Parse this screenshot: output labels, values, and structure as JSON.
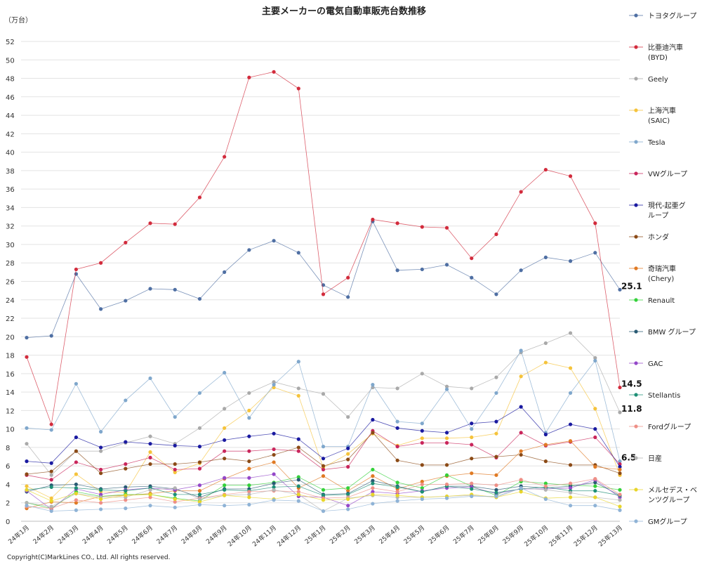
{
  "chart_data": {
    "type": "line",
    "title": "主要メーカーの電気自動車販売台数推移",
    "unit_label": "（万台）",
    "ylim": [
      0,
      52
    ],
    "yticks": [
      0,
      2,
      4,
      6,
      8,
      10,
      12,
      14,
      16,
      18,
      20,
      22,
      24,
      26,
      28,
      30,
      32,
      34,
      36,
      38,
      40,
      42,
      44,
      46,
      48,
      50,
      52
    ],
    "grid": true,
    "legend_position": "right",
    "categories": [
      "24年1月",
      "24年2月",
      "24年3月",
      "24年4月",
      "24年5月",
      "24年6月",
      "24年7月",
      "24年8月",
      "24年9月",
      "24年10月",
      "24年11月",
      "24年12月",
      "25年1月",
      "25年2月",
      "25年3月",
      "25年4月",
      "25年5月",
      "25年6月",
      "25年7月",
      "25年8月",
      "25年9月",
      "25年10月",
      "25年11月",
      "25年12月",
      "25年13月"
    ],
    "series": [
      {
        "name": "トヨタグループ",
        "color": "#4f6fa3",
        "values": [
          19.9,
          20.1,
          26.8,
          23.0,
          23.9,
          25.2,
          25.1,
          24.1,
          27.0,
          29.4,
          30.4,
          29.1,
          25.6,
          24.3,
          32.5,
          27.2,
          27.3,
          27.8,
          26.4,
          24.6,
          27.2,
          28.6,
          28.2,
          29.1,
          25.1
        ]
      },
      {
        "name": "比亜迪汽車\n(BYD)",
        "color": "#d22b3c",
        "values": [
          17.8,
          10.5,
          27.3,
          28.0,
          30.2,
          32.3,
          32.2,
          35.1,
          39.5,
          48.1,
          48.7,
          46.9,
          24.6,
          26.4,
          32.7,
          32.3,
          31.9,
          31.8,
          28.5,
          31.1,
          35.7,
          38.1,
          37.4,
          32.3,
          14.5
        ]
      },
      {
        "name": "Geely",
        "color": "#a9a9a9",
        "values": [
          8.4,
          5.0,
          7.6,
          7.6,
          8.5,
          9.2,
          8.4,
          10.1,
          12.2,
          13.9,
          15.1,
          14.4,
          13.8,
          11.3,
          14.5,
          14.4,
          16.0,
          14.6,
          14.4,
          15.6,
          18.3,
          19.3,
          20.4,
          17.7,
          11.8
        ]
      },
      {
        "name": "上海汽車\n(SAIC)",
        "color": "#f5c33b",
        "values": [
          3.8,
          2.5,
          5.1,
          3.2,
          3.1,
          7.5,
          5.3,
          6.3,
          10.1,
          12.0,
          14.5,
          13.6,
          5.8,
          7.3,
          9.5,
          8.2,
          9.0,
          9.0,
          9.1,
          9.5,
          15.7,
          17.2,
          16.6,
          12.2,
          5.0
        ]
      },
      {
        "name": "Tesla",
        "color": "#7fa7cc",
        "values": [
          10.1,
          9.9,
          14.9,
          9.7,
          13.1,
          15.5,
          11.3,
          13.9,
          16.1,
          11.2,
          14.8,
          17.3,
          8.1,
          8.1,
          14.8,
          10.8,
          10.6,
          14.3,
          10.0,
          13.9,
          18.5,
          9.6,
          13.9,
          17.4,
          6.5
        ]
      },
      {
        "name": "VWグループ",
        "color": "#c9255b",
        "values": [
          5.0,
          4.5,
          6.4,
          5.6,
          6.2,
          6.9,
          5.6,
          5.7,
          7.6,
          7.6,
          7.8,
          7.6,
          5.6,
          5.9,
          9.8,
          8.1,
          8.5,
          8.5,
          8.3,
          6.9,
          9.6,
          8.2,
          8.6,
          9.1,
          6.2
        ]
      },
      {
        "name": "現代-起亜グ\nループ",
        "color": "#1a1aa0",
        "values": [
          6.5,
          6.3,
          9.1,
          8.0,
          8.6,
          8.4,
          8.2,
          8.1,
          8.8,
          9.2,
          9.5,
          8.9,
          6.8,
          7.9,
          11.0,
          10.1,
          9.8,
          9.6,
          10.6,
          10.8,
          12.4,
          9.4,
          10.5,
          10.0,
          5.9
        ]
      },
      {
        "name": "ホンダ",
        "color": "#8b4a16",
        "values": [
          5.1,
          5.4,
          7.6,
          5.2,
          5.7,
          6.2,
          6.2,
          6.4,
          6.8,
          6.5,
          7.2,
          8.0,
          6.0,
          6.7,
          9.6,
          6.6,
          6.1,
          6.1,
          6.8,
          7.0,
          7.2,
          6.5,
          6.1,
          6.1,
          5.2
        ]
      },
      {
        "name": "奇瑞汽車\n(Chery)",
        "color": "#e07a24",
        "values": [
          1.4,
          2.1,
          2.0,
          2.7,
          2.8,
          3.0,
          3.3,
          3.3,
          4.6,
          5.7,
          6.4,
          3.6,
          4.9,
          3.3,
          4.9,
          3.5,
          4.3,
          4.9,
          5.2,
          5.0,
          7.6,
          8.3,
          8.7,
          5.9,
          5.6
        ]
      },
      {
        "name": "Renault",
        "color": "#34d13a",
        "values": [
          2.0,
          1.4,
          3.2,
          2.7,
          2.9,
          2.9,
          2.5,
          2.2,
          3.9,
          3.9,
          4.2,
          4.8,
          3.4,
          3.6,
          5.6,
          4.2,
          3.6,
          5.0,
          3.8,
          2.8,
          4.3,
          4.1,
          3.9,
          3.8,
          3.4
        ]
      },
      {
        "name": "BMW グループ",
        "color": "#285a73",
        "values": [
          3.2,
          3.9,
          4.0,
          3.5,
          3.7,
          3.8,
          3.5,
          2.6,
          3.5,
          3.5,
          4.1,
          4.5,
          2.9,
          3.0,
          4.4,
          3.8,
          3.2,
          3.8,
          3.8,
          3.4,
          3.8,
          3.6,
          3.8,
          4.2,
          2.8
        ]
      },
      {
        "name": "GAC",
        "color": "#9447c9",
        "values": [
          3.3,
          1.3,
          3.5,
          2.9,
          3.4,
          3.6,
          3.4,
          3.9,
          4.7,
          4.7,
          5.1,
          2.7,
          2.6,
          1.7,
          3.2,
          3.0,
          3.3,
          3.6,
          3.7,
          3.0,
          3.5,
          3.5,
          3.6,
          4.5,
          2.6
        ]
      },
      {
        "name": "Stellantis",
        "color": "#1d8f76",
        "values": [
          3.4,
          3.7,
          3.6,
          3.4,
          3.3,
          3.6,
          2.9,
          2.9,
          3.4,
          3.3,
          3.7,
          3.8,
          2.8,
          2.9,
          4.1,
          3.7,
          3.2,
          3.8,
          3.5,
          3.1,
          3.5,
          3.7,
          3.3,
          3.3,
          2.8
        ]
      },
      {
        "name": "Fordグループ",
        "color": "#ee8f86",
        "values": [
          1.6,
          1.4,
          2.3,
          2.0,
          2.3,
          2.6,
          2.1,
          2.5,
          2.9,
          3.2,
          3.3,
          3.2,
          2.5,
          2.6,
          3.6,
          3.2,
          4.0,
          4.0,
          4.1,
          3.9,
          4.5,
          3.8,
          4.1,
          4.6,
          2.9
        ]
      },
      {
        "name": "日産",
        "color": "#b3b3b3",
        "values": [
          2.0,
          1.6,
          3.0,
          2.6,
          2.6,
          3.4,
          3.6,
          2.4,
          2.8,
          2.9,
          3.4,
          2.9,
          1.1,
          2.5,
          2.8,
          2.6,
          2.6,
          2.7,
          2.8,
          2.6,
          3.6,
          3.4,
          3.1,
          2.6,
          2.3
        ]
      },
      {
        "name": "メルセデス・ベ\nンツグループ",
        "color": "#e8d52a",
        "values": [
          3.4,
          2.2,
          3.0,
          2.4,
          2.8,
          2.9,
          2.4,
          2.1,
          2.8,
          2.6,
          2.4,
          2.9,
          2.3,
          2.4,
          2.9,
          2.8,
          2.6,
          2.7,
          2.9,
          2.6,
          3.2,
          2.5,
          2.6,
          2.6,
          1.6
        ]
      },
      {
        "name": "GMグループ",
        "color": "#8fb3d6",
        "values": [
          1.7,
          1.1,
          1.2,
          1.3,
          1.4,
          1.7,
          1.5,
          1.8,
          1.7,
          1.8,
          2.3,
          2.2,
          1.1,
          1.3,
          1.9,
          2.2,
          2.4,
          2.5,
          2.7,
          2.7,
          3.6,
          2.4,
          1.7,
          1.7,
          1.2
        ]
      }
    ],
    "end_labels": [
      {
        "series": 0,
        "text": "25.1"
      },
      {
        "series": 1,
        "text": "14.5"
      },
      {
        "series": 2,
        "text": "11.8"
      },
      {
        "series": 4,
        "text": "6.5"
      }
    ]
  },
  "copyright": "Copyright(C)MarkLines CO., Ltd. All rights reserved."
}
